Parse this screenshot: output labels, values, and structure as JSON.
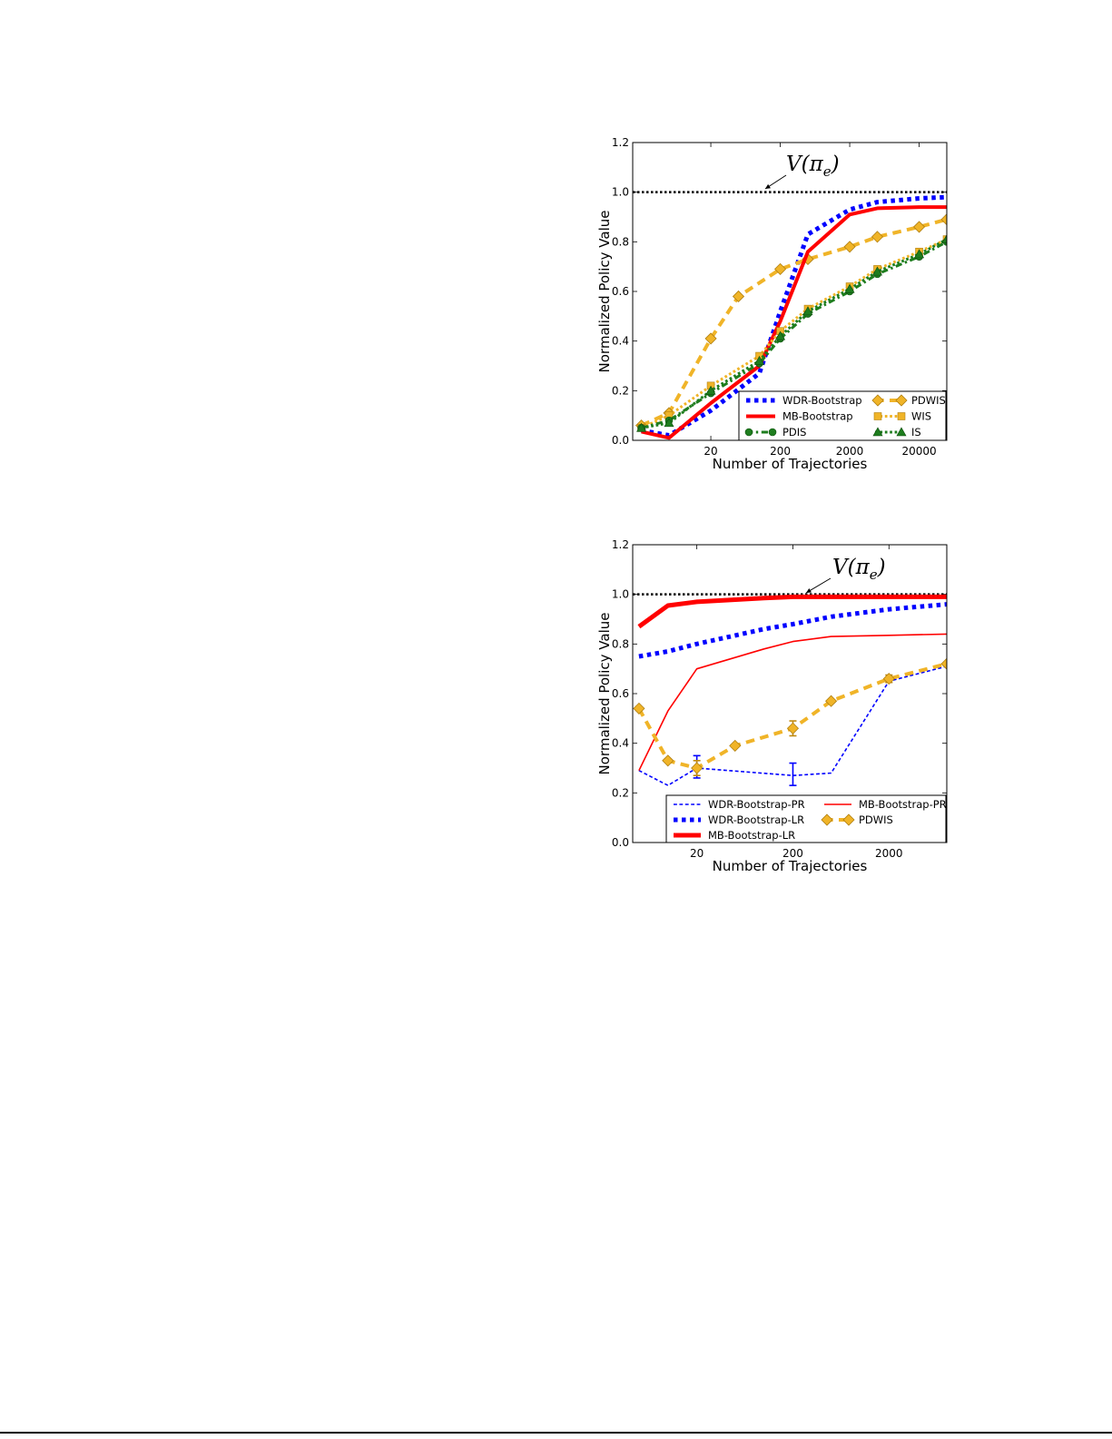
{
  "chart_data": [
    {
      "type": "line",
      "xlabel": "Number of Trajectories",
      "ylabel": "Normalized Policy Value",
      "x_scale": "log",
      "x_ticks": [
        {
          "value": 20,
          "label": "20"
        },
        {
          "value": 200,
          "label": "200"
        },
        {
          "value": 2000,
          "label": "2000"
        },
        {
          "value": 20000,
          "label": "20000"
        }
      ],
      "ylim": [
        0.0,
        1.2
      ],
      "y_ticks": [
        "0.0",
        "0.2",
        "0.4",
        "0.6",
        "0.8",
        "1.0",
        "1.2"
      ],
      "reference_line": {
        "value": 1.0,
        "label": "V(π",
        "label_sub": "e",
        "label_close": ")"
      },
      "legend_placement": "lower-right",
      "legend_columns": 2,
      "series": [
        {
          "name": "WDR-Bootstrap",
          "color": "#0000ff",
          "style": "dotted",
          "width": 5,
          "marker": "none",
          "x": [
            2,
            5,
            20,
            100,
            200,
            500,
            2000,
            5000,
            20000,
            50000
          ],
          "y": [
            0.04,
            0.02,
            0.12,
            0.27,
            0.52,
            0.83,
            0.93,
            0.96,
            0.975,
            0.98
          ]
        },
        {
          "name": "PDWIS",
          "color": "#f0b428",
          "style": "dashed",
          "width": 4,
          "marker": "diamond",
          "x": [
            2,
            5,
            20,
            50,
            200,
            500,
            2000,
            5000,
            20000,
            50000
          ],
          "y": [
            0.06,
            0.11,
            0.41,
            0.58,
            0.69,
            0.73,
            0.78,
            0.82,
            0.86,
            0.89
          ]
        },
        {
          "name": "MB-Bootstrap",
          "color": "#ff0000",
          "style": "solid",
          "width": 4,
          "marker": "none",
          "x": [
            2,
            5,
            20,
            100,
            200,
            500,
            2000,
            5000,
            20000,
            50000
          ],
          "y": [
            0.035,
            0.01,
            0.15,
            0.3,
            0.48,
            0.76,
            0.91,
            0.935,
            0.94,
            0.94
          ]
        },
        {
          "name": "WIS",
          "color": "#f0b428",
          "style": "dotted",
          "width": 3,
          "marker": "square",
          "x": [
            2,
            5,
            20,
            100,
            200,
            500,
            2000,
            5000,
            20000,
            50000
          ],
          "y": [
            0.05,
            0.1,
            0.22,
            0.34,
            0.44,
            0.53,
            0.62,
            0.69,
            0.76,
            0.81
          ]
        },
        {
          "name": "PDIS",
          "color": "#1e7d1e",
          "style": "dashdot",
          "width": 3,
          "marker": "circle",
          "x": [
            2,
            5,
            20,
            100,
            200,
            500,
            2000,
            5000,
            20000,
            50000
          ],
          "y": [
            0.05,
            0.08,
            0.19,
            0.31,
            0.41,
            0.51,
            0.6,
            0.67,
            0.74,
            0.8
          ]
        },
        {
          "name": "IS",
          "color": "#1e7d1e",
          "style": "dotted",
          "width": 3,
          "marker": "triangle",
          "x": [
            2,
            5,
            20,
            100,
            200,
            500,
            2000,
            5000,
            20000,
            50000
          ],
          "y": [
            0.05,
            0.07,
            0.2,
            0.32,
            0.42,
            0.52,
            0.61,
            0.68,
            0.75,
            0.81
          ]
        }
      ]
    },
    {
      "type": "line",
      "xlabel": "Number of Trajectories",
      "ylabel": "Normalized Policy Value",
      "x_scale": "log",
      "x_ticks": [
        {
          "value": 20,
          "label": "20"
        },
        {
          "value": 200,
          "label": "200"
        },
        {
          "value": 2000,
          "label": "2000"
        }
      ],
      "ylim": [
        0.0,
        1.2
      ],
      "y_ticks": [
        "0.0",
        "0.2",
        "0.4",
        "0.6",
        "0.8",
        "1.0",
        "1.2"
      ],
      "reference_line": {
        "value": 1.0,
        "label": "V(π",
        "label_sub": "e",
        "label_close": ")"
      },
      "legend_placement": "lower-right",
      "legend_columns": 2,
      "series": [
        {
          "name": "WDR-Bootstrap-PR",
          "color": "#0000ff",
          "style": "dashed",
          "width": 1.6,
          "marker": "none",
          "x": [
            5,
            10,
            20,
            200,
            500,
            2000,
            8000
          ],
          "y": [
            0.29,
            0.23,
            0.3,
            0.27,
            0.28,
            0.65,
            0.71
          ],
          "error_bars": [
            {
              "x": 20,
              "y": 0.3,
              "low": 0.26,
              "high": 0.35
            },
            {
              "x": 200,
              "y": 0.27,
              "low": 0.23,
              "high": 0.32
            }
          ]
        },
        {
          "name": "MB-Bootstrap-PR",
          "color": "#ff0000",
          "style": "solid",
          "width": 1.6,
          "marker": "none",
          "x": [
            5,
            10,
            20,
            100,
            200,
            500,
            2000,
            8000
          ],
          "y": [
            0.29,
            0.53,
            0.7,
            0.78,
            0.81,
            0.83,
            0.835,
            0.84
          ]
        },
        {
          "name": "WDR-Bootstrap-LR",
          "color": "#0000ff",
          "style": "dotted",
          "width": 5,
          "marker": "none",
          "x": [
            5,
            10,
            20,
            100,
            200,
            500,
            2000,
            8000
          ],
          "y": [
            0.75,
            0.77,
            0.8,
            0.86,
            0.88,
            0.91,
            0.94,
            0.96
          ]
        },
        {
          "name": "PDWIS",
          "color": "#f0b428",
          "style": "dashed",
          "width": 4,
          "marker": "diamond",
          "x": [
            5,
            10,
            20,
            50,
            200,
            500,
            2000,
            8000
          ],
          "y": [
            0.54,
            0.33,
            0.3,
            0.39,
            0.46,
            0.57,
            0.66,
            0.72
          ],
          "error_bars": [
            {
              "x": 20,
              "y": 0.3,
              "low": 0.27,
              "high": 0.33
            },
            {
              "x": 200,
              "y": 0.46,
              "low": 0.43,
              "high": 0.49
            },
            {
              "x": 2000,
              "y": 0.66,
              "low": 0.645,
              "high": 0.675
            }
          ]
        },
        {
          "name": "MB-Bootstrap-LR",
          "color": "#ff0000",
          "style": "solid",
          "width": 5,
          "marker": "none",
          "x": [
            5,
            10,
            20,
            100,
            200,
            500,
            2000,
            8000
          ],
          "y": [
            0.87,
            0.955,
            0.97,
            0.985,
            0.99,
            0.99,
            0.99,
            0.99
          ]
        }
      ]
    }
  ]
}
